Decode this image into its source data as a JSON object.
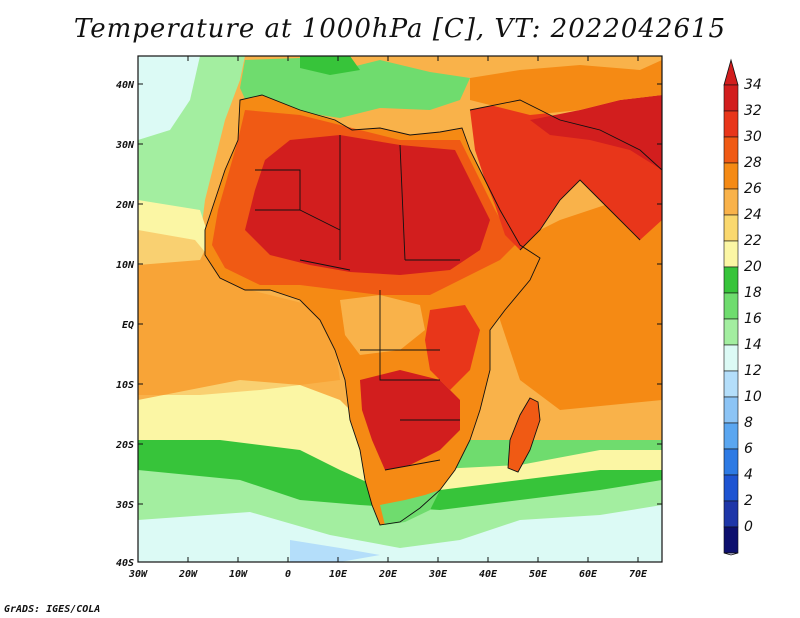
{
  "title": "Temperature at 1000hPa [C], VT: 2022042615",
  "footer": "GrADS: IGES/COLA",
  "map": {
    "lon_labels": [
      "30W",
      "20W",
      "10W",
      "0",
      "10E",
      "20E",
      "30E",
      "40E",
      "50E",
      "60E",
      "70E"
    ],
    "lat_labels": [
      "40N",
      "30N",
      "20N",
      "10N",
      "EQ",
      "10S",
      "20S",
      "30S",
      "40S"
    ],
    "lon_range": [
      -30,
      75
    ],
    "lat_range": [
      -40,
      44
    ]
  },
  "colorbar": {
    "levels": [
      "34",
      "32",
      "30",
      "28",
      "26",
      "24",
      "22",
      "20",
      "18",
      "16",
      "14",
      "12",
      "10",
      "8",
      "6",
      "4",
      "2",
      "0"
    ],
    "colors": [
      "#d21e1e",
      "#e8361a",
      "#f05a14",
      "#f58a14",
      "#f9b24a",
      "#fad86e",
      "#fbf6a4",
      "#37c43a",
      "#6fdc6e",
      "#a3eea0",
      "#dcfaf5",
      "#b4defa",
      "#8cc4f5",
      "#5aa6f0",
      "#2d7ae4",
      "#1e54d2",
      "#1e36a8",
      "#0d106e"
    ]
  }
}
